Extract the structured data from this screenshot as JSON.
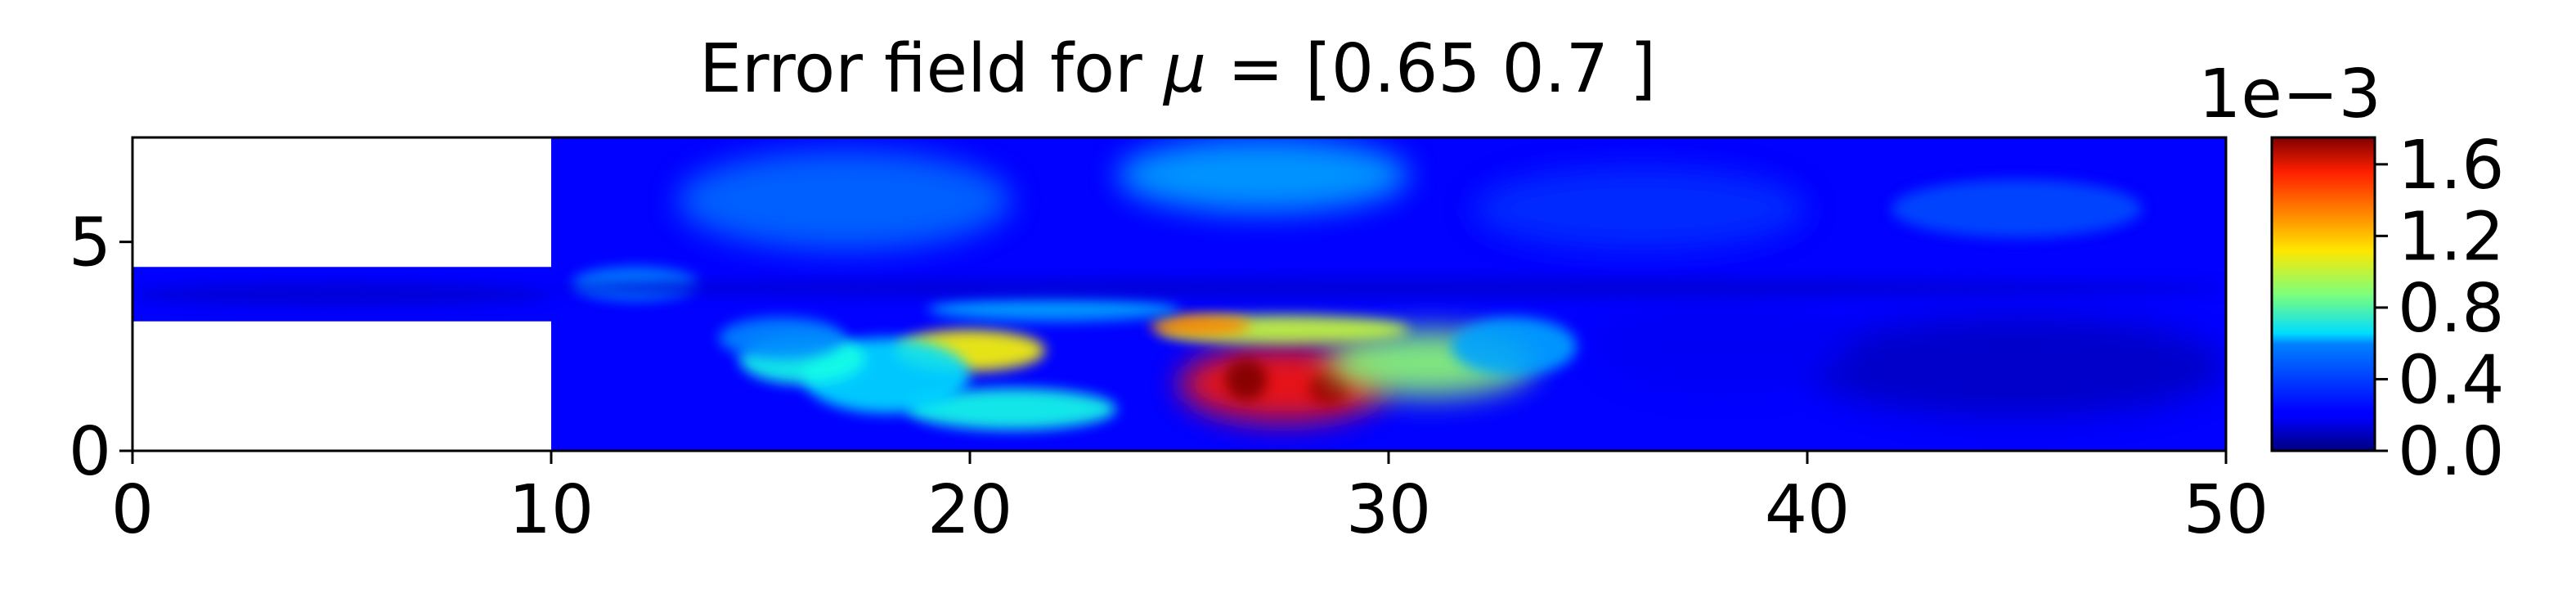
{
  "chart_data": {
    "type": "heatmap",
    "title_prefix": "Error field for ",
    "title_symbol": "μ",
    "title_suffix": " = [0.65 0.7 ]",
    "xlabel": "",
    "ylabel": "",
    "xlim": [
      0,
      50
    ],
    "ylim": [
      0,
      7.5
    ],
    "x_ticks": [
      0,
      10,
      20,
      30,
      40,
      50
    ],
    "y_ticks": [
      0,
      5
    ],
    "colormap": "jet",
    "colorbar": {
      "range": [
        0,
        0.00175
      ],
      "ticks": [
        0.0,
        0.4,
        0.8,
        1.2,
        1.6
      ],
      "tick_labels": [
        "0.0",
        "0.4",
        "0.8",
        "1.2",
        "1.6"
      ],
      "scale_label": "1e−3"
    },
    "inlet_channel": {
      "x": [
        0,
        10
      ],
      "y": [
        3.1,
        4.4
      ]
    },
    "grid": false,
    "error_blobs": [
      {
        "x": 27.5,
        "y": 1.6,
        "rx": 2.5,
        "ry": 0.9,
        "value": 1.5
      },
      {
        "x": 26.6,
        "y": 1.7,
        "rx": 0.5,
        "ry": 0.5,
        "value": 1.75
      },
      {
        "x": 28.6,
        "y": 1.5,
        "rx": 0.5,
        "ry": 0.4,
        "value": 1.7
      },
      {
        "x": 31.0,
        "y": 2.1,
        "rx": 2.5,
        "ry": 0.8,
        "value": 0.9
      },
      {
        "x": 27.5,
        "y": 2.9,
        "rx": 3.0,
        "ry": 0.35,
        "value": 1.0
      },
      {
        "x": 25.5,
        "y": 3.0,
        "rx": 1.2,
        "ry": 0.25,
        "value": 1.3
      },
      {
        "x": 20.0,
        "y": 2.4,
        "rx": 1.8,
        "ry": 0.5,
        "value": 1.1
      },
      {
        "x": 21.0,
        "y": 1.0,
        "rx": 2.5,
        "ry": 0.5,
        "value": 0.7
      },
      {
        "x": 18.0,
        "y": 1.8,
        "rx": 2.0,
        "ry": 0.9,
        "value": 0.6
      },
      {
        "x": 16.0,
        "y": 2.2,
        "rx": 1.5,
        "ry": 0.6,
        "value": 0.7
      },
      {
        "x": 15.5,
        "y": 2.7,
        "rx": 1.5,
        "ry": 0.5,
        "value": 0.45
      },
      {
        "x": 33.0,
        "y": 2.5,
        "rx": 1.5,
        "ry": 0.7,
        "value": 0.5
      },
      {
        "x": 22.0,
        "y": 3.4,
        "rx": 3.0,
        "ry": 0.3,
        "value": 0.5
      },
      {
        "x": 17.0,
        "y": 6.0,
        "rx": 4.0,
        "ry": 1.2,
        "value": 0.4
      },
      {
        "x": 27.0,
        "y": 6.6,
        "rx": 3.5,
        "ry": 0.9,
        "value": 0.5
      },
      {
        "x": 36.0,
        "y": 5.8,
        "rx": 4.0,
        "ry": 1.0,
        "value": 0.3
      },
      {
        "x": 45.0,
        "y": 5.8,
        "rx": 3.0,
        "ry": 0.7,
        "value": 0.35
      },
      {
        "x": 45.0,
        "y": 2.0,
        "rx": 5.0,
        "ry": 1.2,
        "value": 0.12
      },
      {
        "x": 38.0,
        "y": 2.5,
        "rx": 3.0,
        "ry": 1.0,
        "value": 0.2
      },
      {
        "x": 12.0,
        "y": 4.0,
        "rx": 1.5,
        "ry": 0.4,
        "value": 0.45
      },
      {
        "x": 5.0,
        "y": 3.75,
        "rx": 5.0,
        "ry": 0.3,
        "value": 0.15
      },
      {
        "x": 30.0,
        "y": 3.9,
        "rx": 20.0,
        "ry": 0.25,
        "value": 0.15
      }
    ]
  }
}
